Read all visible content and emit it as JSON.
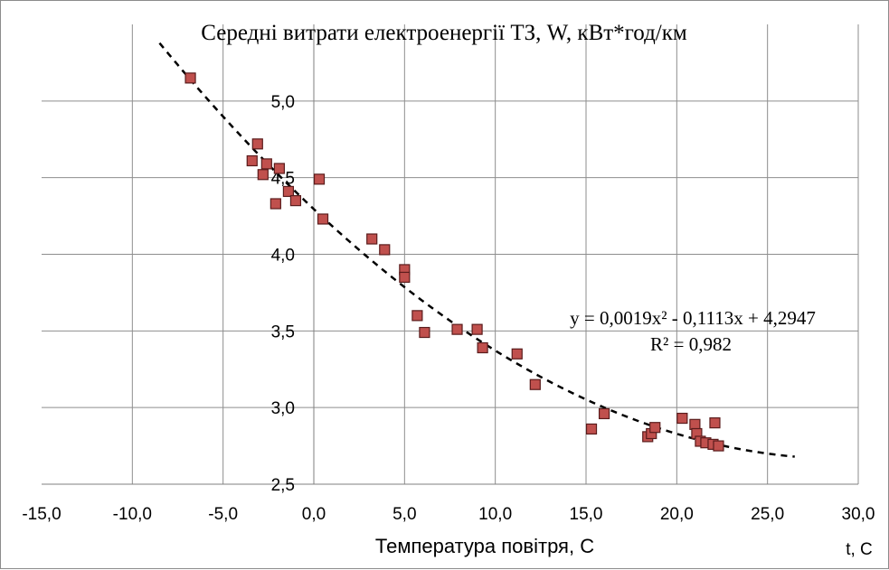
{
  "chart_data": {
    "type": "scatter",
    "title": "Середні витрати електроенергії ТЗ, W, кВт*год/км",
    "xlabel": "Температура повітря, С",
    "x_unit_label": "t, C",
    "xlim": [
      -15,
      30
    ],
    "ylim": [
      2.5,
      5.5
    ],
    "x_ticks": [
      "-15,0",
      "-10,0",
      "-5,0",
      "0,0",
      "5,0",
      "10,0",
      "15,0",
      "20,0",
      "25,0",
      "30,0"
    ],
    "y_ticks": [
      "2,5",
      "3,0",
      "3,5",
      "4,0",
      "4,5",
      "5,0"
    ],
    "grid": true,
    "marker_color": "#c0504d",
    "points": [
      {
        "x": -6.8,
        "y": 5.15
      },
      {
        "x": -3.1,
        "y": 4.72
      },
      {
        "x": -3.4,
        "y": 4.61
      },
      {
        "x": -2.6,
        "y": 4.59
      },
      {
        "x": -2.8,
        "y": 4.52
      },
      {
        "x": -1.9,
        "y": 4.56
      },
      {
        "x": -1.4,
        "y": 4.41
      },
      {
        "x": -2.1,
        "y": 4.33
      },
      {
        "x": -1.0,
        "y": 4.35
      },
      {
        "x": 0.3,
        "y": 4.49
      },
      {
        "x": 0.5,
        "y": 4.23
      },
      {
        "x": 3.2,
        "y": 4.1
      },
      {
        "x": 3.9,
        "y": 4.03
      },
      {
        "x": 5.0,
        "y": 3.9
      },
      {
        "x": 5.0,
        "y": 3.85
      },
      {
        "x": 5.7,
        "y": 3.6
      },
      {
        "x": 6.1,
        "y": 3.49
      },
      {
        "x": 7.9,
        "y": 3.51
      },
      {
        "x": 9.0,
        "y": 3.51
      },
      {
        "x": 9.3,
        "y": 3.39
      },
      {
        "x": 11.2,
        "y": 3.35
      },
      {
        "x": 12.2,
        "y": 3.15
      },
      {
        "x": 15.3,
        "y": 2.86
      },
      {
        "x": 16.0,
        "y": 2.96
      },
      {
        "x": 18.4,
        "y": 2.81
      },
      {
        "x": 18.6,
        "y": 2.83
      },
      {
        "x": 18.8,
        "y": 2.87
      },
      {
        "x": 20.3,
        "y": 2.93
      },
      {
        "x": 21.0,
        "y": 2.89
      },
      {
        "x": 21.1,
        "y": 2.83
      },
      {
        "x": 21.3,
        "y": 2.78
      },
      {
        "x": 21.6,
        "y": 2.77
      },
      {
        "x": 22.0,
        "y": 2.76
      },
      {
        "x": 22.1,
        "y": 2.9
      },
      {
        "x": 22.3,
        "y": 2.75
      }
    ],
    "trendline": {
      "type": "polynomial",
      "coefficients": {
        "a": 0.0019,
        "b": -0.1113,
        "c": 4.2947
      },
      "x_range": [
        -8.5,
        26.5
      ],
      "style": "dashed"
    },
    "annotations": {
      "equation": "y = 0,0019x² - 0,1113x + 4,2947",
      "r_squared": "R² = 0,982"
    }
  }
}
